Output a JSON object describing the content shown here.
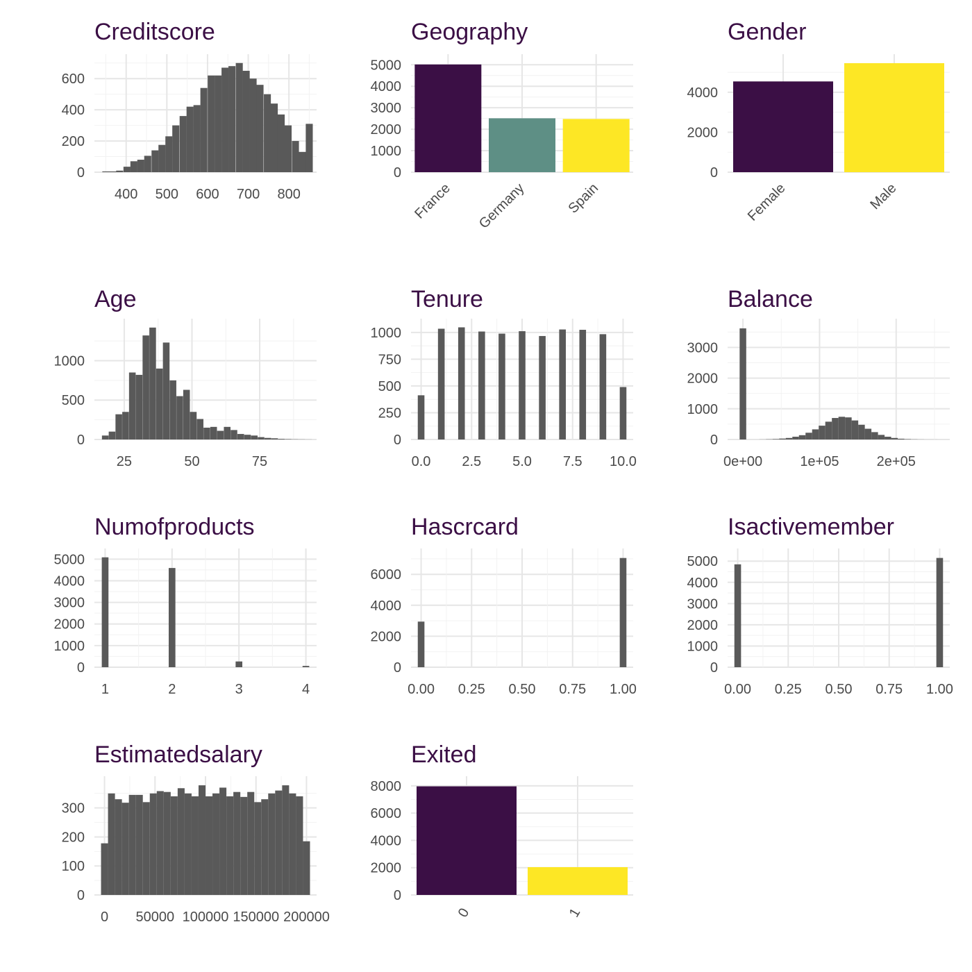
{
  "colors": {
    "hist": "#595959",
    "viridis_dark": "#440154",
    "viridis_mid": "#21908c",
    "viridis_yellow": "#fde725",
    "title": "#3b0f45",
    "tick": "#4a4a4a"
  },
  "chart_data": [
    {
      "id": "creditscore",
      "type": "bar",
      "title": "Creditscore",
      "xlim": [
        322,
        868
      ],
      "ylim": [
        0,
        730
      ],
      "xticks": [
        400,
        500,
        600,
        700,
        800
      ],
      "xtick_labels": [
        "400",
        "500",
        "600",
        "700",
        "800"
      ],
      "yticks": [
        0,
        200,
        400,
        600
      ],
      "ytick_labels": [
        "0",
        "200",
        "400",
        "600"
      ],
      "bin_width": 17.24,
      "x": [
        350,
        367,
        384,
        402,
        419,
        436,
        453,
        471,
        488,
        505,
        522,
        540,
        557,
        574,
        591,
        609,
        626,
        643,
        660,
        678,
        695,
        712,
        729,
        747,
        764,
        781,
        798,
        816,
        833,
        850
      ],
      "values": [
        5,
        5,
        10,
        35,
        70,
        80,
        105,
        140,
        175,
        230,
        300,
        360,
        420,
        430,
        540,
        620,
        620,
        670,
        680,
        700,
        650,
        600,
        560,
        500,
        440,
        370,
        300,
        200,
        130,
        310
      ]
    },
    {
      "id": "geography",
      "type": "bar",
      "title": "Geography",
      "categories": [
        "France",
        "Germany",
        "Spain"
      ],
      "values": [
        5014,
        2509,
        2477
      ],
      "colors": [
        "#3b0f45",
        "#5e8f85",
        "#fde725"
      ],
      "ylim": [
        0,
        5300
      ],
      "yticks": [
        0,
        1000,
        2000,
        3000,
        4000,
        5000
      ],
      "ytick_labels": [
        "0",
        "1000",
        "2000",
        "3000",
        "4000",
        "5000"
      ]
    },
    {
      "id": "gender",
      "type": "bar",
      "title": "Gender",
      "categories": [
        "Female",
        "Male"
      ],
      "values": [
        4543,
        5457
      ],
      "colors": [
        "#3b0f45",
        "#fde725"
      ],
      "ylim": [
        0,
        5700
      ],
      "yticks": [
        0,
        2000,
        4000
      ],
      "ytick_labels": [
        "0",
        "2000",
        "4000"
      ]
    },
    {
      "id": "age",
      "type": "bar",
      "title": "Age",
      "xlim": [
        14,
        96
      ],
      "ylim": [
        0,
        1480
      ],
      "xticks": [
        25,
        50,
        75
      ],
      "xtick_labels": [
        "25",
        "50",
        "75"
      ],
      "yticks": [
        0,
        500,
        1000
      ],
      "ytick_labels": [
        "0",
        "500",
        "1000"
      ],
      "bin_width": 2.45,
      "x": [
        18,
        20.5,
        23,
        25.5,
        28,
        30.5,
        33,
        35.5,
        38,
        40.5,
        43,
        45.5,
        48,
        50.5,
        53,
        55.5,
        58,
        60.5,
        63,
        65.5,
        68,
        70.5,
        73,
        75.5,
        78,
        80.5,
        83,
        85.5,
        88,
        90.5,
        93
      ],
      "values": [
        50,
        100,
        320,
        350,
        850,
        820,
        1320,
        1420,
        900,
        1230,
        750,
        550,
        630,
        350,
        260,
        150,
        160,
        110,
        160,
        120,
        70,
        60,
        50,
        30,
        20,
        15,
        8,
        5,
        3,
        2,
        1
      ]
    },
    {
      "id": "tenure",
      "type": "bar",
      "title": "Tenure",
      "xlim": [
        -0.5,
        10.5
      ],
      "ylim": [
        0,
        1090
      ],
      "xticks": [
        0,
        2.5,
        5,
        7.5,
        10
      ],
      "xtick_labels": [
        "0.0",
        "2.5",
        "5.0",
        "7.5",
        "10.0"
      ],
      "yticks": [
        0,
        250,
        500,
        750,
        1000
      ],
      "ytick_labels": [
        "0",
        "250",
        "500",
        "750",
        "1000"
      ],
      "bin_width": 0.33,
      "x": [
        0,
        1,
        2,
        3,
        4,
        5,
        6,
        7,
        8,
        9,
        10
      ],
      "values": [
        413,
        1035,
        1048,
        1009,
        989,
        1012,
        967,
        1028,
        1025,
        984,
        490
      ]
    },
    {
      "id": "balance",
      "type": "bar",
      "title": "Balance",
      "xlim": [
        -20000,
        270000
      ],
      "ylim": [
        0,
        3800
      ],
      "xticks": [
        0,
        100000,
        200000
      ],
      "xtick_labels": [
        "0e+00",
        "1e+05",
        "2e+05"
      ],
      "yticks": [
        0,
        1000,
        2000,
        3000
      ],
      "ytick_labels": [
        "0",
        "1000",
        "2000",
        "3000"
      ],
      "bin_width": 8600,
      "x": [
        0,
        8600,
        17200,
        25800,
        34400,
        43000,
        51600,
        60200,
        68800,
        77400,
        86000,
        94600,
        103200,
        111800,
        120400,
        129000,
        137600,
        146200,
        154800,
        163400,
        172000,
        180600,
        189200,
        197800,
        206400,
        215000,
        223600,
        232200,
        240800,
        249400
      ],
      "values": [
        3620,
        0,
        0,
        3,
        8,
        15,
        30,
        50,
        90,
        140,
        220,
        330,
        450,
        580,
        700,
        740,
        720,
        620,
        480,
        350,
        240,
        150,
        90,
        50,
        25,
        12,
        6,
        3,
        1,
        1
      ]
    },
    {
      "id": "numofproducts",
      "type": "bar",
      "title": "Numofproducts",
      "xlim": [
        0.84,
        4.16
      ],
      "ylim": [
        0,
        5300
      ],
      "xticks": [
        1,
        2,
        3,
        4
      ],
      "xtick_labels": [
        "1",
        "2",
        "3",
        "4"
      ],
      "yticks": [
        0,
        1000,
        2000,
        3000,
        4000,
        5000
      ],
      "ytick_labels": [
        "0",
        "1000",
        "2000",
        "3000",
        "4000",
        "5000"
      ],
      "bin_width": 0.1,
      "x": [
        1,
        2,
        3,
        4
      ],
      "values": [
        5084,
        4590,
        266,
        60
      ]
    },
    {
      "id": "hascrcard",
      "type": "bar",
      "title": "Hascrcard",
      "xlim": [
        -0.05,
        1.05
      ],
      "ylim": [
        0,
        7400
      ],
      "xticks": [
        0,
        0.25,
        0.5,
        0.75,
        1
      ],
      "xtick_labels": [
        "0.00",
        "0.25",
        "0.50",
        "0.75",
        "1.00"
      ],
      "yticks": [
        0,
        2000,
        4000,
        6000
      ],
      "ytick_labels": [
        "0",
        "2000",
        "4000",
        "6000"
      ],
      "bin_width": 0.033,
      "x": [
        0,
        1
      ],
      "values": [
        2945,
        7055
      ]
    },
    {
      "id": "isactivemember",
      "type": "bar",
      "title": "Isactivemember",
      "xlim": [
        -0.05,
        1.05
      ],
      "ylim": [
        0,
        5400
      ],
      "xticks": [
        0,
        0.25,
        0.5,
        0.75,
        1
      ],
      "xtick_labels": [
        "0.00",
        "0.25",
        "0.50",
        "0.75",
        "1.00"
      ],
      "yticks": [
        0,
        1000,
        2000,
        3000,
        4000,
        5000
      ],
      "ytick_labels": [
        "0",
        "1000",
        "2000",
        "3000",
        "4000",
        "5000"
      ],
      "bin_width": 0.033,
      "x": [
        0,
        1
      ],
      "values": [
        4849,
        5151
      ]
    },
    {
      "id": "estimatedsalary",
      "type": "bar",
      "title": "Estimatedsalary",
      "xlim": [
        -10000,
        210000
      ],
      "ylim": [
        0,
        395
      ],
      "xticks": [
        0,
        50000,
        100000,
        150000,
        200000
      ],
      "xtick_labels": [
        "0",
        "50000",
        "100000",
        "150000",
        "200000"
      ],
      "yticks": [
        0,
        100,
        200,
        300
      ],
      "ytick_labels": [
        "0",
        "100",
        "200",
        "300"
      ],
      "bin_width": 6897,
      "x": [
        0,
        6897,
        13794,
        20690,
        27587,
        34484,
        41381,
        48278,
        55174,
        62071,
        68968,
        75865,
        82762,
        89658,
        96555,
        103452,
        110349,
        117246,
        124142,
        131039,
        137936,
        144833,
        151730,
        158626,
        165523,
        172420,
        179317,
        186214,
        193110,
        200007
      ],
      "values": [
        178,
        350,
        330,
        318,
        345,
        345,
        320,
        350,
        358,
        355,
        340,
        368,
        350,
        340,
        378,
        340,
        350,
        370,
        340,
        355,
        338,
        355,
        320,
        330,
        350,
        360,
        378,
        350,
        340,
        185
      ]
    },
    {
      "id": "exited",
      "type": "bar",
      "title": "Exited",
      "categories": [
        "0",
        "1"
      ],
      "values": [
        7963,
        2037
      ],
      "colors": [
        "#3b0f45",
        "#fde725"
      ],
      "ylim": [
        0,
        8400
      ],
      "yticks": [
        0,
        2000,
        4000,
        6000,
        8000
      ],
      "ytick_labels": [
        "0",
        "2000",
        "4000",
        "6000",
        "8000"
      ]
    }
  ]
}
